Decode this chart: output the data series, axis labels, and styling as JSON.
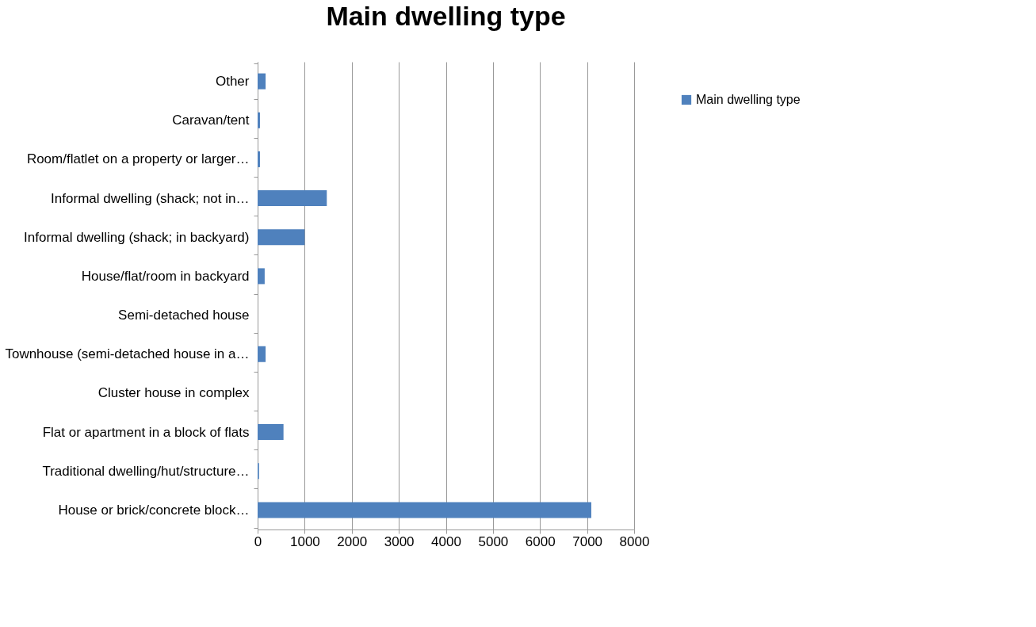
{
  "chart_data": {
    "type": "bar",
    "orientation": "horizontal",
    "title": "Main dwelling type",
    "categories": [
      "Other",
      "Caravan/tent",
      "Room/flatlet on a property or larger…",
      "Informal dwelling (shack; not in…",
      "Informal dwelling (shack; in backyard)",
      "House/flat/room in backyard",
      "Semi-detached house",
      "Townhouse (semi-detached house in a…",
      "Cluster house in complex",
      "Flat or apartment in a block of flats",
      "Traditional dwelling/hut/structure…",
      "House or brick/concrete block…"
    ],
    "series": [
      {
        "name": "Main dwelling type",
        "color": "#4f81bd",
        "values": [
          170,
          50,
          50,
          1470,
          1000,
          150,
          0,
          170,
          0,
          550,
          30,
          7090
        ]
      }
    ],
    "xlim": [
      0,
      8000
    ],
    "xticks": [
      0,
      1000,
      2000,
      3000,
      4000,
      5000,
      6000,
      7000,
      8000
    ],
    "grid": "x",
    "legend": "right"
  }
}
